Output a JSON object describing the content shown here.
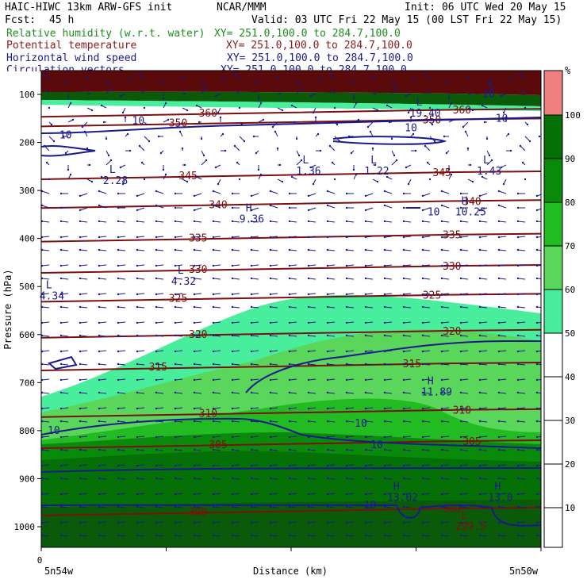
{
  "header": {
    "model": "HAIC-HIWC 13km ARW-GFS init",
    "center": "NCAR/MMM",
    "init": "Init: 06 UTC Wed 20 May 15",
    "fcst_label": "Fcst:",
    "fcst_value": "45 h",
    "valid": "Valid: 03 UTC Fri 22 May 15 (00 LST Fri 22 May 15)",
    "fields": [
      {
        "name": "Relative humidity (w.r.t. water)",
        "xy": "XY= 251.0,100.0 to 284.7,100.0",
        "color": "#1e8c1e"
      },
      {
        "name": "Potential temperature",
        "xy": "XY= 251.0,100.0 to 284.7,100.0",
        "color": "#8b1a1a"
      },
      {
        "name": "Horizontal wind speed",
        "xy": "XY= 251.0,100.0 to 284.7,100.0",
        "color": "#1a1a8c"
      },
      {
        "name": "Circulation vectors",
        "xy": "XY= 251.0,100.0 to 284.7,100.0",
        "color": "#1a1a8c"
      }
    ]
  },
  "colorbar": {
    "unit": "%",
    "levels": [
      10,
      20,
      30,
      40,
      50,
      60,
      70,
      80,
      90,
      100
    ],
    "colors": [
      "#ffffff",
      "#ffffff",
      "#ffffff",
      "#ffffff",
      "#ffffff",
      "#48ee9c",
      "#5ad65a",
      "#22bb22",
      "#0a8a0a",
      "#057005",
      "#0a5a0a",
      "#f08080"
    ]
  },
  "chart_data": {
    "type": "heatmap",
    "xlabel": "Distance (km)",
    "ylabel": "Pressure (hPa)",
    "x_tick_labels": [
      "0"
    ],
    "x_endpoints": [
      "5n54w",
      "5n50w"
    ],
    "y_ticks": [
      100,
      200,
      300,
      400,
      500,
      600,
      700,
      800,
      900,
      1000
    ],
    "theta_contours": [
      {
        "value": 300,
        "label": "300",
        "y": 970
      },
      {
        "value": 305,
        "label": "305",
        "y": 830
      },
      {
        "value": 310,
        "label": "310",
        "y": 765
      },
      {
        "value": 315,
        "label": "315",
        "y": 668
      },
      {
        "value": 320,
        "label": "320",
        "y": 600
      },
      {
        "value": 325,
        "label": "325",
        "y": 525
      },
      {
        "value": 330,
        "label": "330",
        "y": 465
      },
      {
        "value": 335,
        "label": "335",
        "y": 400
      },
      {
        "value": 340,
        "label": "340",
        "y": 330
      },
      {
        "value": 345,
        "label": "345",
        "y": 270
      },
      {
        "value": 350,
        "label": "350",
        "y": 160
      },
      {
        "value": 360,
        "label": "360",
        "y": 140
      }
    ],
    "extrema": [
      {
        "kind": "L",
        "value": "2.28",
        "x": 0.3,
        "y": 280
      },
      {
        "kind": "L",
        "value": "1.36",
        "x": 1.15,
        "y": 260
      },
      {
        "kind": "L",
        "value": "1.22",
        "x": 1.45,
        "y": 260
      },
      {
        "kind": "L",
        "value": "1.43",
        "x": 2.05,
        "y": 260
      },
      {
        "kind": "H",
        "value": "10.25",
        "x": 1.85,
        "y": 345
      },
      {
        "kind": "H",
        "value": "9.36",
        "x": 0.9,
        "y": 360
      },
      {
        "kind": "L",
        "value": "4.32",
        "x": 0.6,
        "y": 490
      },
      {
        "kind": "L",
        "value": "4.34",
        "x": 0.02,
        "y": 520
      },
      {
        "kind": "H",
        "value": "11.89",
        "x": 1.7,
        "y": 720
      },
      {
        "kind": "H",
        "value": "13.02",
        "x": 1.55,
        "y": 940
      },
      {
        "kind": "H",
        "value": "13.0",
        "x": 2.1,
        "y": 940
      },
      {
        "kind": "L",
        "value": "299.5",
        "x": 1.85,
        "y": 1000
      },
      {
        "kind": "L",
        "value": "19.40",
        "x": 1.65,
        "y": 140
      },
      {
        "kind": "L",
        "value": "10",
        "x": 1.97,
        "y": 100
      }
    ],
    "wind_labels": [
      {
        "value": "10",
        "x": 0.08,
        "y": 185
      },
      {
        "value": "10",
        "x": 1.6,
        "y": 170
      },
      {
        "value": "10",
        "x": 1.7,
        "y": 345
      },
      {
        "value": "10",
        "x": 0.4,
        "y": 155
      },
      {
        "value": "10",
        "x": 1.38,
        "y": 785
      },
      {
        "value": "10",
        "x": 1.45,
        "y": 830
      },
      {
        "value": "10",
        "x": 1.42,
        "y": 955
      },
      {
        "value": "10",
        "x": 0.0,
        "y": 800
      },
      {
        "value": "10",
        "x": 2.0,
        "y": 150
      }
    ]
  }
}
